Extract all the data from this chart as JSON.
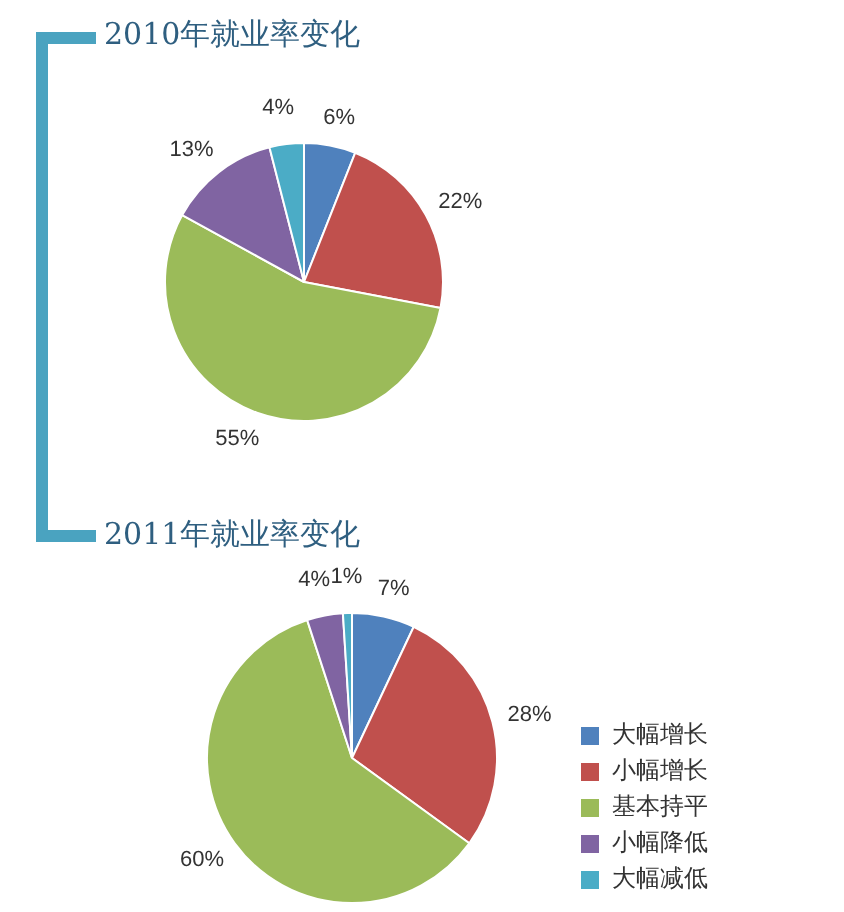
{
  "chart_data": [
    {
      "type": "pie",
      "title": "2010年就业率变化",
      "categories": [
        null,
        null,
        null,
        null,
        null
      ],
      "values": [
        6,
        22,
        55,
        13,
        4
      ],
      "colors": [
        "#4f81bd",
        "#c0504d",
        "#9bbb59",
        "#8064a2",
        "#4bacc6"
      ],
      "value_labels": [
        "6%",
        "22%",
        "55%",
        "13%",
        "4%"
      ],
      "legend": false
    },
    {
      "type": "pie",
      "title": "2011年就业率变化",
      "categories": [
        "大幅增长",
        "小幅增长",
        "基本持平",
        "小幅降低",
        "大幅减低"
      ],
      "values": [
        7,
        28,
        60,
        4,
        1
      ],
      "colors": [
        "#4f81bd",
        "#c0504d",
        "#9bbb59",
        "#8064a2",
        "#4bacc6"
      ],
      "value_labels": [
        "7%",
        "28%",
        "60%",
        "4%",
        "1%"
      ],
      "legend": "right"
    }
  ]
}
